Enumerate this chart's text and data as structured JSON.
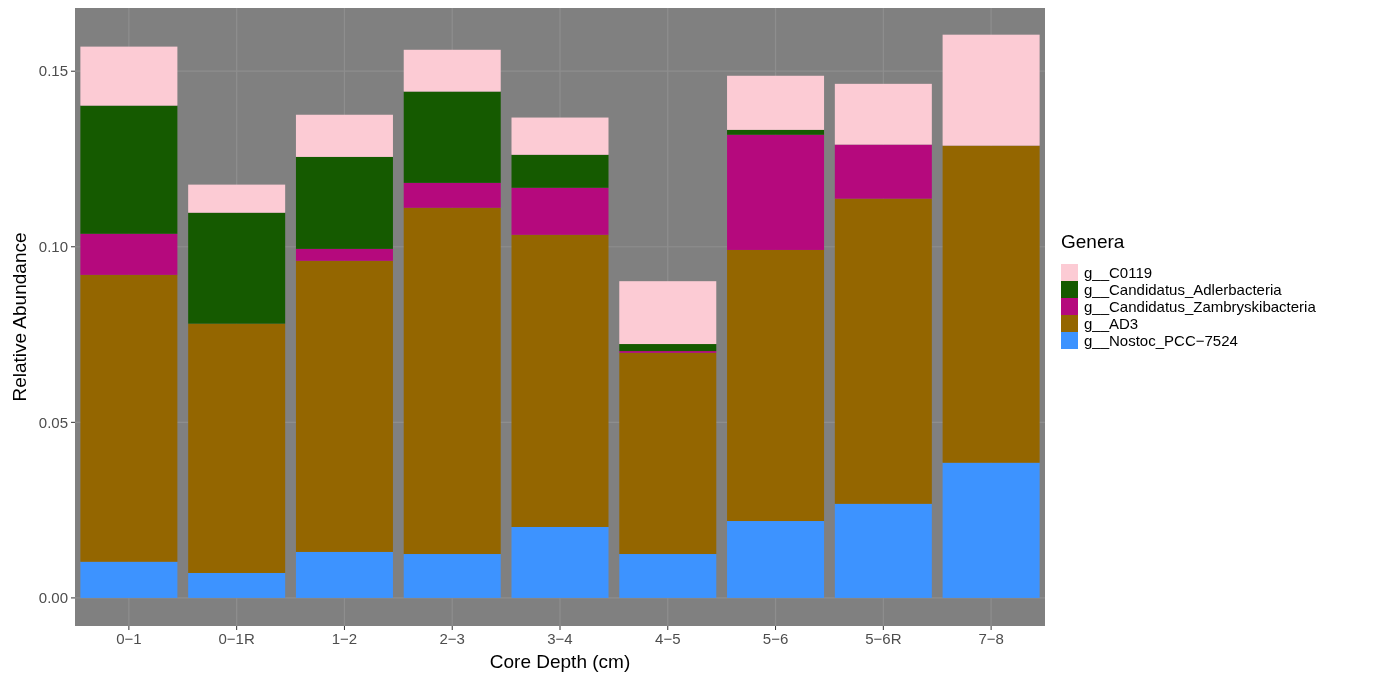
{
  "chart_data": {
    "type": "bar",
    "stacked": true,
    "xlabel": "Core Depth (cm)",
    "ylabel": "Relative Abundance",
    "legend_title": "Genera",
    "legend": "right",
    "grid": true,
    "categories": [
      "0−1",
      "0−1R",
      "1−2",
      "2−3",
      "3−4",
      "4−5",
      "5−6",
      "5−6R",
      "7−8"
    ],
    "ylim": [
      -0.008,
      0.168
    ],
    "yticks": [
      {
        "value": 0,
        "label": "0.00"
      },
      {
        "value": 0.05,
        "label": "0.05"
      },
      {
        "value": 0.1,
        "label": "0.10"
      },
      {
        "value": 0.15,
        "label": "0.15"
      }
    ],
    "series": [
      {
        "name": "g__Nostoc_PCC−7524",
        "color": "#3d93ff",
        "values": [
          0.0103,
          0.0071,
          0.0131,
          0.0125,
          0.0202,
          0.0125,
          0.0219,
          0.0268,
          0.0385
        ]
      },
      {
        "name": "g__AD3",
        "color": "#946600",
        "values": [
          0.0817,
          0.071,
          0.0829,
          0.0986,
          0.0832,
          0.0573,
          0.0772,
          0.0869,
          0.0903
        ]
      },
      {
        "name": "g__Candidatus_Zambryskibacteria",
        "color": "#b5097d",
        "values": [
          0.0117,
          0,
          0.0034,
          0.0071,
          0.0134,
          0.0005,
          0.0328,
          0.0154,
          0
        ]
      },
      {
        "name": "g__Candidatus_Adlerbacteria",
        "color": "#155a00",
        "values": [
          0.0365,
          0.0316,
          0.0262,
          0.026,
          0.0094,
          0.002,
          0.0014,
          0,
          0
        ]
      },
      {
        "name": "g__C0119",
        "color": "#fccbd4",
        "values": [
          0.0168,
          0.008,
          0.012,
          0.0119,
          0.0106,
          0.0179,
          0.0154,
          0.0173,
          0.0316
        ]
      }
    ]
  }
}
